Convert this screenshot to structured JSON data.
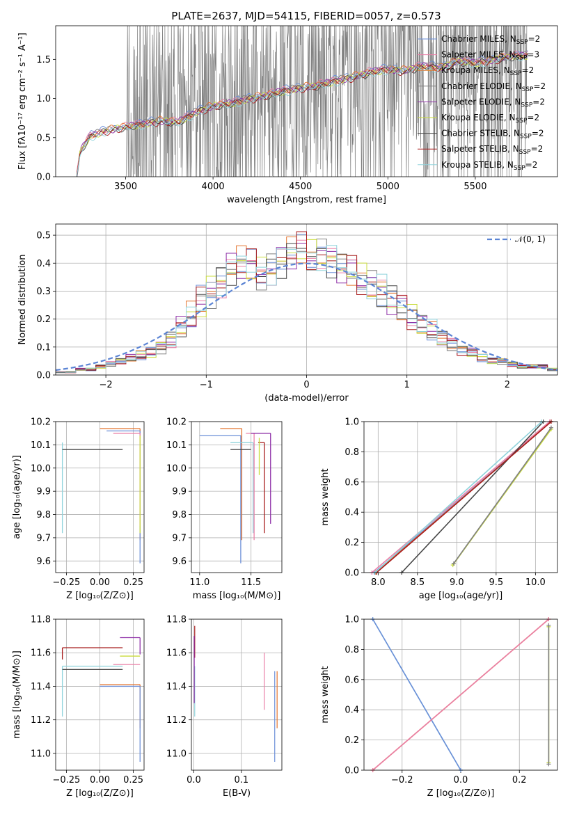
{
  "figure": {
    "title": "PLATE=2637, MJD=54115, FIBERID=0057, z=0.573"
  },
  "series_colors": {
    "Chabrier MILES": "#6b8fd8",
    "Salpeter MILES": "#ea7fa7",
    "Kroupa MILES": "#e4742e",
    "Chabrier ELODIE": "#7f7f7f",
    "Salpeter ELODIE": "#8e2fa7",
    "Kroupa ELODIE": "#c9dc3c",
    "Chabrier STELIB": "#444444",
    "Salpeter STELIB": "#a81d1d",
    "Kroupa STELIB": "#8fd3dc"
  },
  "chart_data": [
    {
      "id": "spectrum",
      "type": "line",
      "title": "PLATE=2637, MJD=54115, FIBERID=0057, z=0.573",
      "xlabel": "wavelength [Angstrom, rest frame]",
      "ylabel": "Flux [fλ10⁻¹⁷ erg cm⁻² s⁻¹ A⁻¹]",
      "xlim": [
        3100,
        5970
      ],
      "ylim": [
        0,
        1.93
      ],
      "xticks": [
        3500,
        4000,
        4500,
        5000,
        5500
      ],
      "yticks": [
        0.0,
        0.5,
        1.0,
        1.5
      ],
      "grid": false,
      "legend_position": "top-right",
      "legend": [
        {
          "label": "Chabrier MILES, N_SSP=2",
          "base": "Chabrier MILES, N",
          "sub": "SSP",
          "tail": "=2",
          "color": "#6b8fd8"
        },
        {
          "label": "Salpeter MILES, N_SSP=3",
          "base": "Salpeter MILES, N",
          "sub": "SSP",
          "tail": "=3",
          "color": "#ea7fa7"
        },
        {
          "label": "Kroupa MILES, N_SSP=2",
          "base": "Kroupa MILES, N",
          "sub": "SSP",
          "tail": "=2",
          "color": "#e4742e"
        },
        {
          "label": "Chabrier ELODIE, N_SSP=2",
          "base": "Chabrier ELODIE, N",
          "sub": "SSP",
          "tail": "=2",
          "color": "#7f7f7f"
        },
        {
          "label": "Salpeter ELODIE, N_SSP=2",
          "base": "Salpeter ELODIE, N",
          "sub": "SSP",
          "tail": "=2",
          "color": "#8e2fa7"
        },
        {
          "label": "Kroupa ELODIE, N_SSP=2",
          "base": "Kroupa ELODIE, N",
          "sub": "SSP",
          "tail": "=2",
          "color": "#c9dc3c"
        },
        {
          "label": "Chabrier STELIB, N_SSP=2",
          "base": "Chabrier STELIB, N",
          "sub": "SSP",
          "tail": "=2",
          "color": "#444444"
        },
        {
          "label": "Salpeter STELIB, N_SSP=2",
          "base": "Salpeter STELIB, N",
          "sub": "SSP",
          "tail": "=2",
          "color": "#a81d1d"
        },
        {
          "label": "Kroupa STELIB, N_SSP=2",
          "base": "Kroupa STELIB, N",
          "sub": "SSP",
          "tail": "=2",
          "color": "#8fd3dc"
        }
      ],
      "model_continuum": {
        "x": [
          3220,
          3240,
          3300,
          3400,
          3500,
          3600,
          3700,
          3800,
          3900,
          4000,
          4100,
          4200,
          4300,
          4400,
          4500,
          4600,
          4700,
          4800,
          4900,
          5000,
          5100,
          5200,
          5300,
          5400,
          5500,
          5600,
          5700,
          5800
        ],
        "y": [
          0.02,
          0.35,
          0.55,
          0.62,
          0.66,
          0.7,
          0.74,
          0.72,
          0.85,
          0.93,
          0.96,
          1.02,
          1.06,
          1.12,
          1.16,
          1.19,
          1.25,
          1.3,
          1.36,
          1.4,
          1.38,
          1.44,
          1.42,
          1.5,
          1.48,
          1.52,
          1.56,
          1.58
        ]
      },
      "noisy_data_start": 3500,
      "noisy_data_end": 5800
    },
    {
      "id": "residuals",
      "type": "bar",
      "subtype": "step-histogram",
      "xlabel": "(data-model)/error",
      "ylabel": "Normed distribution",
      "xlim": [
        -2.5,
        2.5
      ],
      "ylim": [
        0,
        0.54
      ],
      "xticks": [
        -2,
        -1,
        0,
        1,
        2
      ],
      "yticks": [
        0.0,
        0.1,
        0.2,
        0.3,
        0.4,
        0.5
      ],
      "grid": true,
      "legend_position": "top-right",
      "legend": [
        {
          "label": "𝒩(0, 1)",
          "color": "#5b84d4",
          "style": "dashed"
        }
      ],
      "bin_edges_start": -2.5,
      "bin_width": 0.1,
      "histogram_envelope": [
        0.01,
        0.01,
        0.02,
        0.02,
        0.03,
        0.04,
        0.05,
        0.06,
        0.07,
        0.08,
        0.1,
        0.13,
        0.17,
        0.21,
        0.26,
        0.3,
        0.34,
        0.38,
        0.4,
        0.39,
        0.36,
        0.38,
        0.41,
        0.44,
        0.45,
        0.42,
        0.43,
        0.41,
        0.39,
        0.37,
        0.34,
        0.32,
        0.3,
        0.27,
        0.24,
        0.21,
        0.18,
        0.16,
        0.13,
        0.11,
        0.09,
        0.08,
        0.06,
        0.05,
        0.05,
        0.04,
        0.03,
        0.03,
        0.03,
        0.02
      ]
    },
    {
      "id": "age-vs-Z",
      "type": "scatter",
      "xlabel": "Z [log₁₀(Z/Z⊙)]",
      "ylabel": "age  [log₁₀(age/yr)]",
      "xlim": [
        -0.33,
        0.33
      ],
      "ylim": [
        9.55,
        10.2
      ],
      "xticks": [
        -0.25,
        0.0,
        0.25
      ],
      "yticks": [
        9.6,
        9.7,
        9.8,
        9.9,
        10.0,
        10.1,
        10.2
      ],
      "grid": true,
      "points": [
        {
          "x": 0.3,
          "y": 10.17,
          "x_from": 0.0,
          "y_from": 9.69,
          "color": "#e4742e"
        },
        {
          "x": 0.3,
          "y": 10.16,
          "x_from": 0.05,
          "y_from": 9.59,
          "color": "#6b8fd8"
        },
        {
          "x": 0.3,
          "y": 10.15,
          "x_from": 0.1,
          "y_from": 9.75,
          "color": "#ea7fa7"
        },
        {
          "x": -0.28,
          "y": 10.11,
          "x_from": -0.28,
          "y_from": 9.72,
          "color": "#8fd3dc"
        },
        {
          "x": -0.28,
          "y": 10.08,
          "x_from": 0.17,
          "y_from": 10.08,
          "color": "#444444"
        },
        {
          "x": 0.3,
          "y": 10.14,
          "x_from": 0.3,
          "y_from": 9.72,
          "color": "#c9dc3c"
        }
      ]
    },
    {
      "id": "age-vs-mass",
      "type": "scatter",
      "xlabel": "mass [log₁₀(M/M⊙)]",
      "ylabel": "",
      "xlim": [
        10.92,
        11.8
      ],
      "ylim": [
        9.55,
        10.2
      ],
      "xticks": [
        11.0,
        11.5
      ],
      "yticks": [
        9.6,
        9.7,
        9.8,
        9.9,
        10.0,
        10.1,
        10.2
      ],
      "grid": true,
      "points": [
        {
          "x": 11.41,
          "y": 10.17,
          "x_from": 11.2,
          "y_from": 9.69,
          "color": "#e4742e"
        },
        {
          "x": 11.4,
          "y": 10.14,
          "x_from": 11.0,
          "y_from": 9.59,
          "color": "#6b8fd8"
        },
        {
          "x": 11.53,
          "y": 10.15,
          "x_from": 11.45,
          "y_from": 9.69,
          "color": "#ea7fa7"
        },
        {
          "x": 11.52,
          "y": 10.11,
          "x_from": 11.3,
          "y_from": 9.72,
          "color": "#8fd3dc"
        },
        {
          "x": 11.5,
          "y": 10.08,
          "x_from": 11.3,
          "y_from": 10.08,
          "color": "#444444"
        },
        {
          "x": 11.63,
          "y": 10.11,
          "x_from": 11.57,
          "y_from": 9.72,
          "color": "#a81d1d"
        },
        {
          "x": 11.69,
          "y": 10.15,
          "x_from": 11.5,
          "y_from": 9.76,
          "color": "#8e2fa7"
        },
        {
          "x": 11.58,
          "y": 10.13,
          "x_from": 11.58,
          "y_from": 9.97,
          "color": "#c9dc3c"
        }
      ]
    },
    {
      "id": "mass-weight-vs-age",
      "type": "line",
      "xlabel": "age  [log₁₀(age/yr)]",
      "ylabel": "mass weight",
      "xlim": [
        7.82,
        10.28
      ],
      "ylim": [
        0,
        1.0
      ],
      "xticks": [
        8.0,
        8.5,
        9.0,
        9.5,
        10.0
      ],
      "yticks": [
        0.0,
        0.2,
        0.4,
        0.6,
        0.8,
        1.0
      ],
      "grid": true,
      "series": [
        {
          "x": [
            7.95,
            10.2
          ],
          "y": [
            0.0,
            1.0
          ],
          "color": "#6b8fd8"
        },
        {
          "x": [
            7.92,
            10.18
          ],
          "y": [
            0.0,
            1.0
          ],
          "color": "#ea7fa7"
        },
        {
          "x": [
            7.97,
            10.2
          ],
          "y": [
            0.0,
            1.0
          ],
          "color": "#e4742e"
        },
        {
          "x": [
            8.3,
            10.1
          ],
          "y": [
            0.0,
            1.0
          ],
          "color": "#444444"
        },
        {
          "x": [
            7.98,
            10.2
          ],
          "y": [
            0.0,
            1.0
          ],
          "color": "#a81d1d"
        },
        {
          "x": [
            7.96,
            10.08
          ],
          "y": [
            0.0,
            1.0
          ],
          "color": "#8fd3dc"
        },
        {
          "x": [
            8.95,
            10.2
          ],
          "y": [
            0.05,
            0.95
          ],
          "color": "#c9dc3c"
        },
        {
          "x": [
            8.96,
            10.2
          ],
          "y": [
            0.06,
            0.96
          ],
          "color": "#7f7f7f"
        }
      ]
    },
    {
      "id": "mass-vs-Z",
      "type": "scatter",
      "xlabel": "Z [log₁₀(Z/Z⊙)]",
      "ylabel": "mass [log₁₀(M/M⊙)]",
      "xlim": [
        -0.33,
        0.33
      ],
      "ylim": [
        10.9,
        11.8
      ],
      "xticks": [
        -0.25,
        0.0,
        0.25
      ],
      "yticks": [
        11.0,
        11.2,
        11.4,
        11.6,
        11.8
      ],
      "grid": true,
      "points": [
        {
          "x": -0.28,
          "y": 11.63,
          "x_from": 0.17,
          "y_from": 11.56,
          "color": "#a81d1d"
        },
        {
          "x": 0.3,
          "y": 11.69,
          "x_from": 0.15,
          "y_from": 11.59,
          "color": "#8e2fa7"
        },
        {
          "x": 0.3,
          "y": 11.58,
          "x_from": 0.15,
          "y_from": 11.58,
          "color": "#c9dc3c"
        },
        {
          "x": 0.3,
          "y": 11.53,
          "x_from": 0.1,
          "y_from": 11.53,
          "color": "#ea7fa7"
        },
        {
          "x": -0.28,
          "y": 11.52,
          "x_from": 0.17,
          "y_from": 11.22,
          "color": "#8fd3dc"
        },
        {
          "x": -0.28,
          "y": 11.5,
          "x_from": 0.17,
          "y_from": 11.5,
          "color": "#444444"
        },
        {
          "x": 0.3,
          "y": 11.41,
          "x_from": 0.0,
          "y_from": 11.15,
          "color": "#e4742e"
        },
        {
          "x": 0.3,
          "y": 11.4,
          "x_from": 0.0,
          "y_from": 10.95,
          "color": "#6b8fd8"
        }
      ]
    },
    {
      "id": "mass-vs-ebv",
      "type": "scatter",
      "xlabel": "E(B-V)",
      "ylabel": "",
      "xlim": [
        -0.005,
        0.185
      ],
      "ylim": [
        10.9,
        11.8
      ],
      "xticks": [
        0.0,
        0.1
      ],
      "yticks": [
        11.0,
        11.2,
        11.4,
        11.6,
        11.8
      ],
      "grid": true,
      "segments": [
        {
          "x": 0.002,
          "y0": 11.57,
          "y1": 11.76,
          "color": "#a81d1d"
        },
        {
          "x": 0.002,
          "y0": 11.22,
          "y1": 11.52,
          "color": "#8fd3dc"
        },
        {
          "x": 0.001,
          "y0": 11.3,
          "y1": 11.7,
          "color": "#8e2fa7"
        },
        {
          "x": 0.148,
          "y0": 11.26,
          "y1": 11.6,
          "color": "#ea7fa7"
        },
        {
          "x": 0.17,
          "y0": 10.95,
          "y1": 11.49,
          "color": "#6b8fd8"
        },
        {
          "x": 0.175,
          "y0": 11.15,
          "y1": 11.49,
          "color": "#e4742e"
        }
      ]
    },
    {
      "id": "mass-weight-vs-Z",
      "type": "line",
      "xlabel": "Z [log₁₀(Z/Z⊙)]",
      "ylabel": "mass weight",
      "xlim": [
        -0.33,
        0.33
      ],
      "ylim": [
        0,
        1.0
      ],
      "xticks": [
        -0.2,
        0.0,
        0.2
      ],
      "yticks": [
        0.0,
        0.2,
        0.4,
        0.6,
        0.8,
        1.0
      ],
      "grid": true,
      "series": [
        {
          "x": [
            -0.3,
            0.0
          ],
          "y": [
            1.0,
            0.0
          ],
          "color": "#8fd3dc"
        },
        {
          "x": [
            -0.3,
            0.0
          ],
          "y": [
            1.0,
            0.0
          ],
          "color": "#6b8fd8"
        },
        {
          "x": [
            -0.3,
            0.3
          ],
          "y": [
            0.0,
            1.0
          ],
          "color": "#e4742e"
        },
        {
          "x": [
            -0.3,
            0.3
          ],
          "y": [
            0.0,
            1.0
          ],
          "color": "#ea7fa7"
        },
        {
          "x": [
            0.3,
            0.3
          ],
          "y": [
            0.05,
            0.95
          ],
          "color": "#c9dc3c"
        },
        {
          "x": [
            0.3,
            0.3
          ],
          "y": [
            0.04,
            0.96
          ],
          "color": "#7f7f7f"
        }
      ]
    }
  ]
}
